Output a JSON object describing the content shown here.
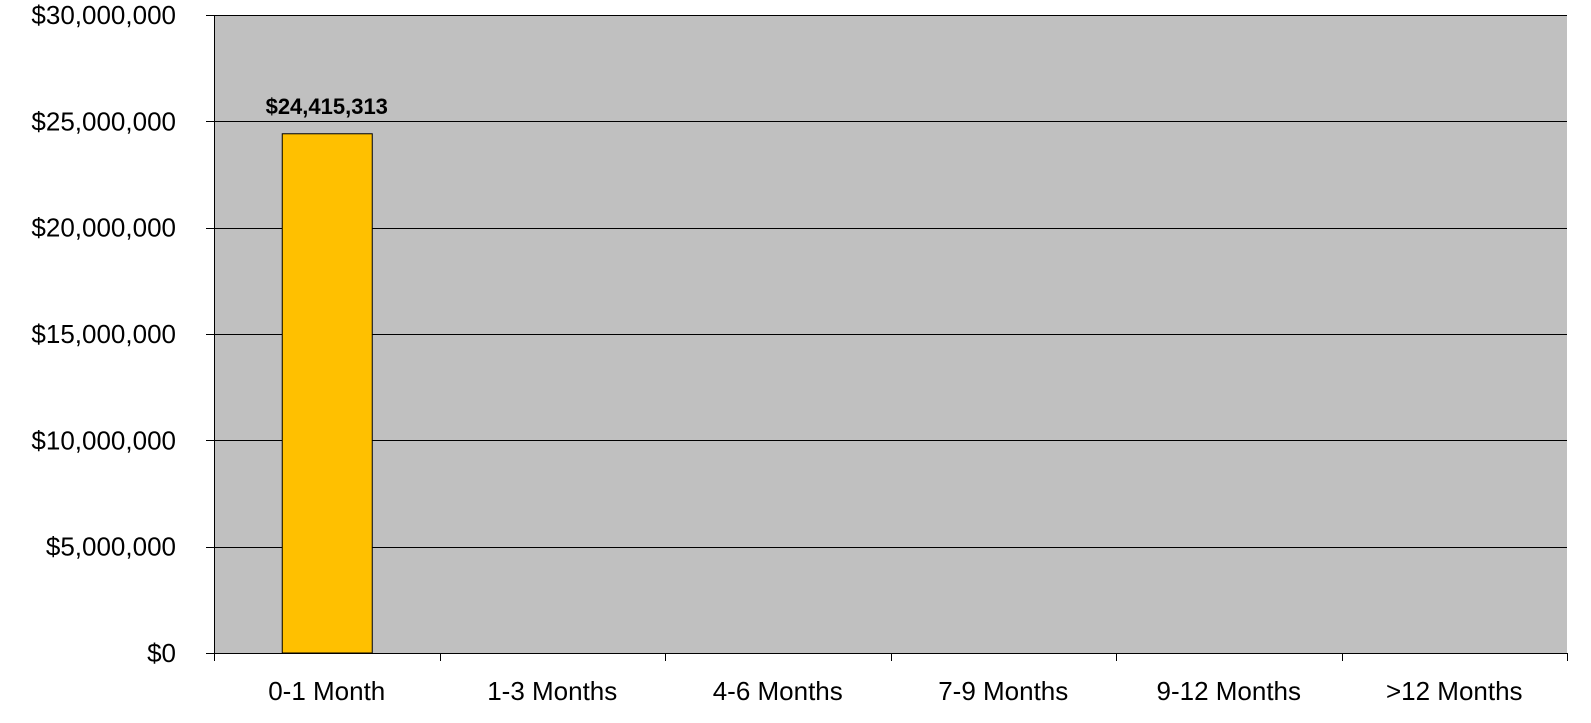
{
  "colors": {
    "plot_background": "#c0c0c0",
    "bar_fill": "#ffc000",
    "bar_stroke": "#000000",
    "gridline": "#000000",
    "axis": "#000000"
  },
  "chart_data": {
    "type": "bar",
    "title": "",
    "xlabel": "",
    "ylabel": "",
    "categories": [
      "0-1 Month",
      "1-3 Months",
      "4-6 Months",
      "7-9 Months",
      "9-12 Months",
      ">12 Months"
    ],
    "values": [
      24415313,
      0,
      0,
      0,
      0,
      0
    ],
    "data_labels": [
      "$24,415,313",
      "",
      "",
      "",
      "",
      ""
    ],
    "ylim": [
      0,
      30000000
    ],
    "y_ticks": [
      0,
      5000000,
      10000000,
      15000000,
      20000000,
      25000000,
      30000000
    ],
    "y_tick_labels": [
      "$0",
      "$5,000,000",
      "$10,000,000",
      "$15,000,000",
      "$20,000,000",
      "$25,000,000",
      "$30,000,000"
    ],
    "grid": true,
    "legend": "none"
  }
}
